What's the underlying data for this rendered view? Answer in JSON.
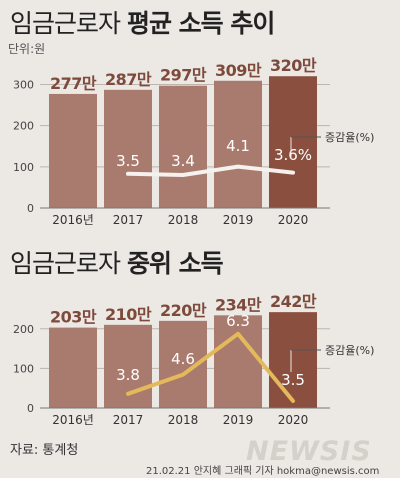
{
  "charts": [
    {
      "title_main": "임금근로자",
      "title_bold": "평균 소득 추이",
      "unit_label": "단위:원",
      "series_label": "증감율(%)"
    },
    {
      "title_main": "임금근로자",
      "title_bold": "중위 소득",
      "series_label": "증감율(%)"
    }
  ],
  "source": "자료: 통계청",
  "watermark": "NEWSIS",
  "credit": "21.02.21  안지혜 그래픽 기자  hokma@newsis.com",
  "colors": {
    "background": "#ece8e4",
    "bar": "#a97b6e",
    "bar_last": "#8a4f3f",
    "label": "#7d4a3c",
    "line_top": "#f4f1ee",
    "line_bottom": "#e4b95c"
  },
  "chart_data": [
    {
      "type": "bar",
      "title": "임금근로자 평균 소득 추이",
      "categories": [
        "2016년",
        "2017",
        "2018",
        "2019",
        "2020"
      ],
      "values": [
        277,
        287,
        297,
        309,
        320
      ],
      "value_labels": [
        "277만",
        "287만",
        "297만",
        "309만",
        "320만"
      ],
      "ylim": [
        0,
        340
      ],
      "yticks": [
        0,
        100,
        200,
        300
      ],
      "grid": true,
      "overlay": {
        "type": "line",
        "name": "증감율(%)",
        "x": [
          "2017",
          "2018",
          "2019",
          "2020"
        ],
        "values": [
          3.5,
          3.4,
          4.1,
          3.6
        ],
        "value_labels": [
          "3.5",
          "3.4",
          "4.1",
          "3.6%"
        ]
      }
    },
    {
      "type": "bar",
      "title": "임금근로자 중위 소득",
      "categories": [
        "2016년",
        "2017",
        "2018",
        "2019",
        "2020"
      ],
      "values": [
        203,
        210,
        220,
        234,
        242
      ],
      "value_labels": [
        "203만",
        "210만",
        "220만",
        "234만",
        "242만"
      ],
      "ylim": [
        0,
        255
      ],
      "yticks": [
        0,
        100,
        200
      ],
      "grid": true,
      "overlay": {
        "type": "line",
        "name": "증감율(%)",
        "x": [
          "2017",
          "2018",
          "2019",
          "2020"
        ],
        "values": [
          3.8,
          4.6,
          6.3,
          3.5
        ],
        "value_labels": [
          "3.8",
          "4.6",
          "6.3",
          "3.5"
        ]
      }
    }
  ]
}
